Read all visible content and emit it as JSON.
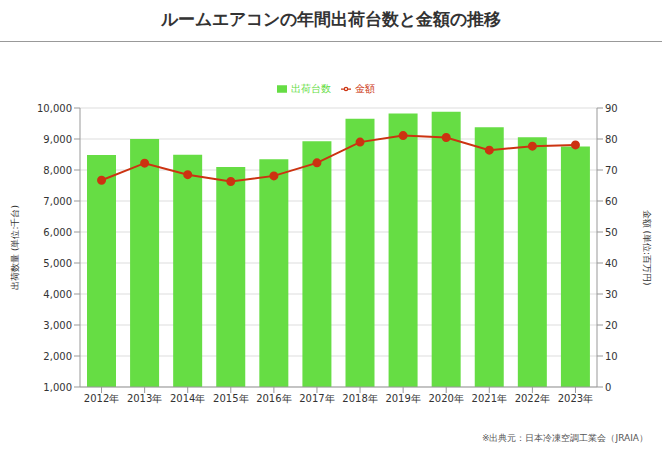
{
  "chart_data": {
    "type": "bar",
    "title": "ルームエアコンの年間出荷台数と金額の推移",
    "categories": [
      "2012年",
      "2013年",
      "2014年",
      "2015年",
      "2016年",
      "2017年",
      "2018年",
      "2019年",
      "2020年",
      "2021年",
      "2022年",
      "2023年"
    ],
    "series": [
      {
        "name": "出荷台数",
        "type": "bar",
        "color": "#66dd44",
        "values": [
          8480,
          9000,
          8490,
          8100,
          8350,
          8930,
          9650,
          9820,
          9880,
          9380,
          9060,
          8760
        ]
      },
      {
        "name": "金額",
        "type": "line",
        "axis": "y2",
        "color": "#cc3311",
        "marker": "circle",
        "values": [
          66.7,
          72.2,
          68.5,
          66.3,
          68.1,
          72.3,
          79.0,
          81.1,
          80.5,
          76.4,
          77.7,
          78.1
        ]
      }
    ],
    "y_label": "出荷数量 (単位:千台)",
    "y2_label": "金額 (単位:百万円)",
    "ylim": [
      1000,
      10000
    ],
    "yticks": [
      {
        "value": 1000,
        "label": "1,000"
      },
      {
        "value": 2000,
        "label": "2,000"
      },
      {
        "value": 3000,
        "label": "3,000"
      },
      {
        "value": 4000,
        "label": "4,000"
      },
      {
        "value": 5000,
        "label": "5,000"
      },
      {
        "value": 6000,
        "label": "6,000"
      },
      {
        "value": 7000,
        "label": "7,000"
      },
      {
        "value": 8000,
        "label": "8,000"
      },
      {
        "value": 9000,
        "label": "9,000"
      },
      {
        "value": 10000,
        "label": "10,000"
      }
    ],
    "y2lim": [
      0,
      90
    ],
    "y2ticks": [
      0,
      10,
      20,
      30,
      40,
      50,
      60,
      70,
      80,
      90
    ],
    "grid": true,
    "legend": "top",
    "source": "※出典元：日本冷凍空調工業会（JRAIA）"
  }
}
